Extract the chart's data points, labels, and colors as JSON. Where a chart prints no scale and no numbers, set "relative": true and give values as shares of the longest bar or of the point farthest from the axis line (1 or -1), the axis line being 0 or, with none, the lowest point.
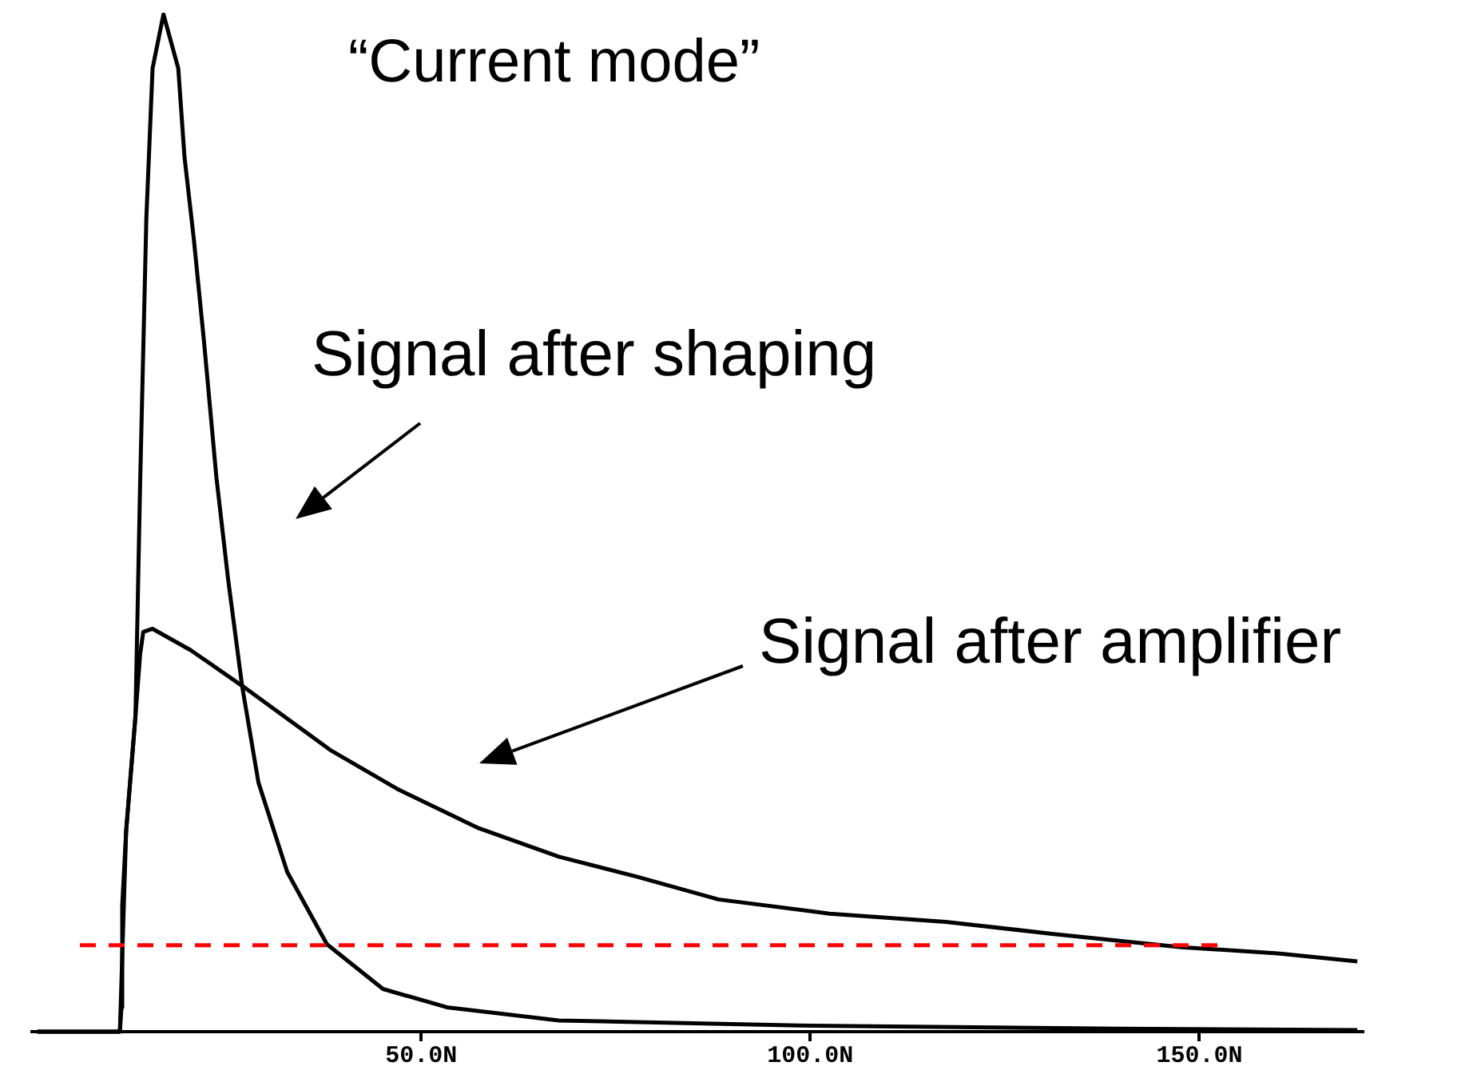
{
  "chart_data": {
    "type": "line",
    "relative": true,
    "annotations": [
      "“Current mode”",
      "Signal after shaping",
      "Signal after amplifier"
    ],
    "xlim": [
      0,
      171
    ],
    "xticks": [
      {
        "value": 50,
        "label": "50.0N"
      },
      {
        "value": 100,
        "label": "100.0N"
      },
      {
        "value": 150,
        "label": "150.0N"
      }
    ],
    "grid": false,
    "legend": false,
    "marker": "none",
    "line_style": "solid",
    "tick_labels": "x",
    "ref_lines": [
      {
        "axis": "y",
        "value": 0.085,
        "color": "#ff0000",
        "line_style": "dashed"
      }
    ],
    "series": [
      {
        "color": "#000000",
        "x": [
          0.7,
          11.3,
          11.5,
          11.6,
          12.1,
          13.3,
          13.9,
          14.7,
          15.5,
          16.9,
          18.8,
          19.6,
          20.8,
          22.1,
          23.7,
          25.2,
          27.0,
          29.1,
          32.8,
          37.9,
          45.1,
          53.3,
          67.7,
          98.5,
          139.5,
          170.3
        ],
        "values": [
          0,
          0,
          0.024,
          0.124,
          0.197,
          0.31,
          0.539,
          0.8,
          0.947,
          1.0,
          0.947,
          0.86,
          0.779,
          0.679,
          0.545,
          0.445,
          0.34,
          0.245,
          0.157,
          0.086,
          0.042,
          0.024,
          0.011,
          0.006,
          0.003,
          0.0016
        ]
      },
      {
        "color": "#000000",
        "x": [
          0.7,
          11.3,
          12.1,
          13.3,
          13.9,
          14.3,
          15.5,
          20.4,
          27.0,
          38.3,
          47.1,
          57.4,
          67.7,
          77.9,
          88.2,
          102.5,
          117.4,
          131.3,
          147.7,
          160.1,
          170.3
        ],
        "values": [
          0,
          0,
          0.197,
          0.31,
          0.371,
          0.393,
          0.396,
          0.375,
          0.34,
          0.277,
          0.238,
          0.2,
          0.172,
          0.152,
          0.13,
          0.116,
          0.108,
          0.096,
          0.083,
          0.077,
          0.069
        ]
      }
    ]
  }
}
